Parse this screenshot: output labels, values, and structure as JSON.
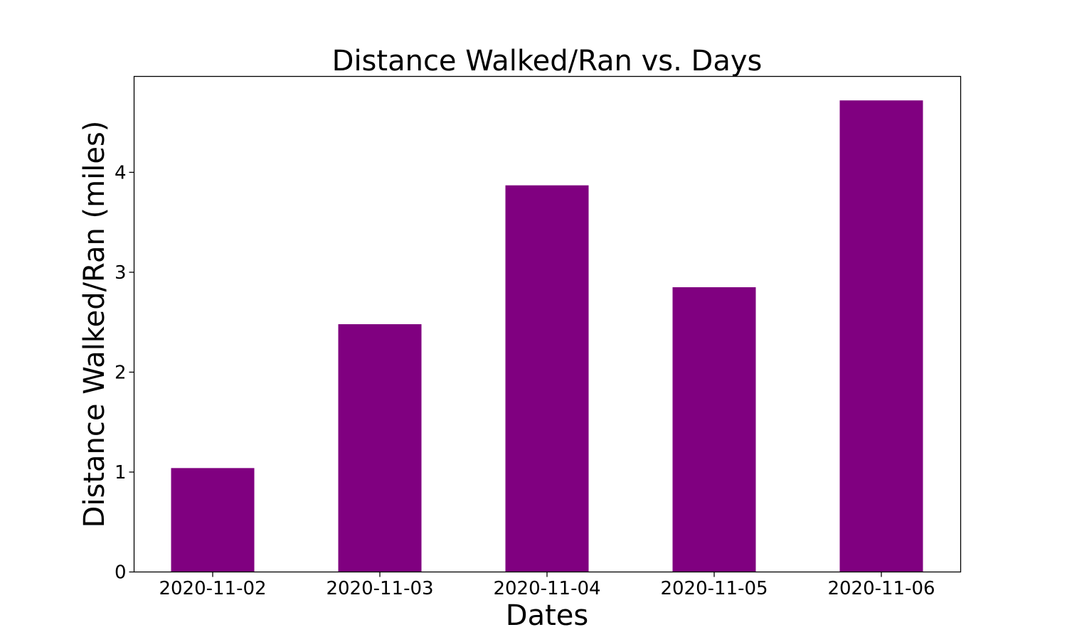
{
  "chart_data": {
    "type": "bar",
    "title": "Distance Walked/Ran vs. Days",
    "xlabel": "Dates",
    "ylabel": "Distance Walked/Ran (miles)",
    "categories": [
      "2020-11-02",
      "2020-11-03",
      "2020-11-04",
      "2020-11-05",
      "2020-11-06"
    ],
    "values": [
      1.04,
      2.48,
      3.87,
      2.85,
      4.72
    ],
    "ylim": [
      0,
      4.96
    ],
    "yticks": [
      0,
      1,
      2,
      3,
      4
    ],
    "bar_color": "#800080",
    "grid": false,
    "legend": "none"
  }
}
